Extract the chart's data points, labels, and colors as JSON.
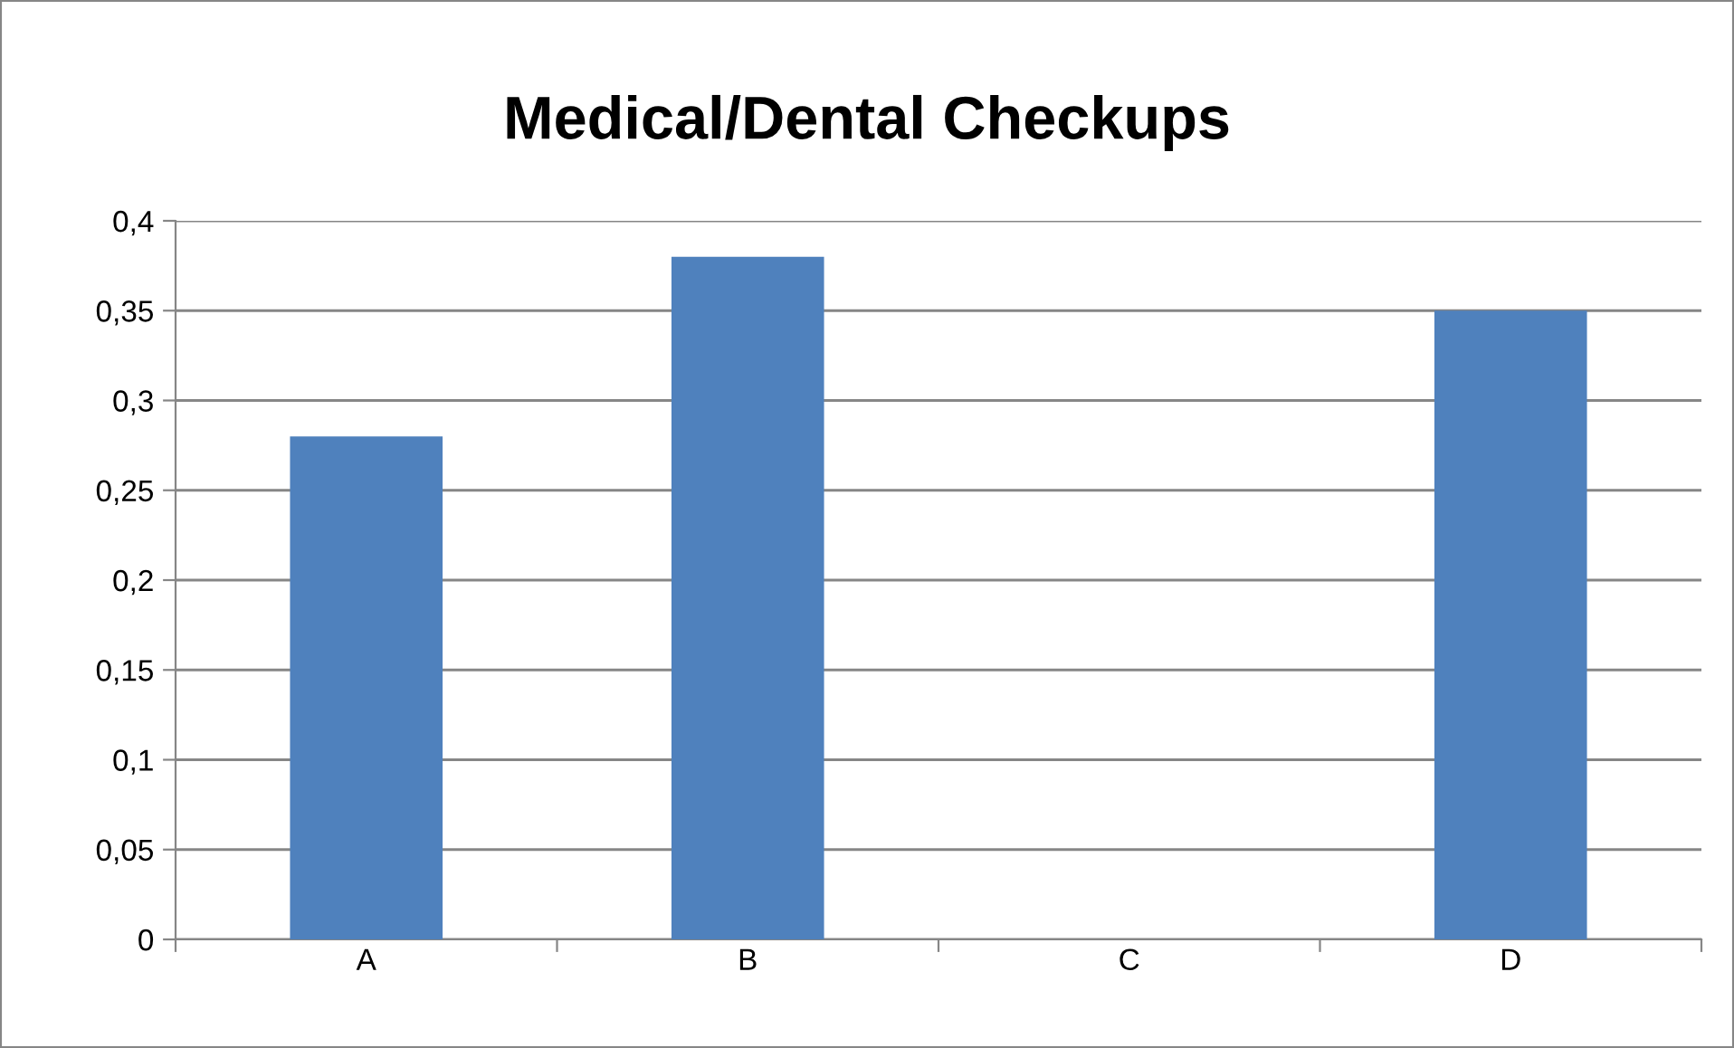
{
  "chart_data": {
    "type": "bar",
    "title": "Medical/Dental Checkups",
    "categories": [
      "A",
      "B",
      "C",
      "D"
    ],
    "values": [
      0.28,
      0.38,
      0,
      0.35
    ],
    "color": "#4f81bd",
    "ylim": [
      0,
      0.4
    ],
    "yticks": [
      0,
      {
        "value": 0.05,
        "label": "0,05"
      },
      {
        "value": 0.1,
        "label": "0,1"
      },
      {
        "value": 0.15,
        "label": "0,15"
      },
      {
        "value": 0.2,
        "label": "0,2"
      },
      {
        "value": 0.25,
        "label": "0,25"
      },
      {
        "value": 0.3,
        "label": "0,3"
      },
      {
        "value": 0.35,
        "label": "0,35"
      },
      {
        "value": 0.4,
        "label": "0,4"
      }
    ],
    "grid": "y",
    "legend": false
  }
}
